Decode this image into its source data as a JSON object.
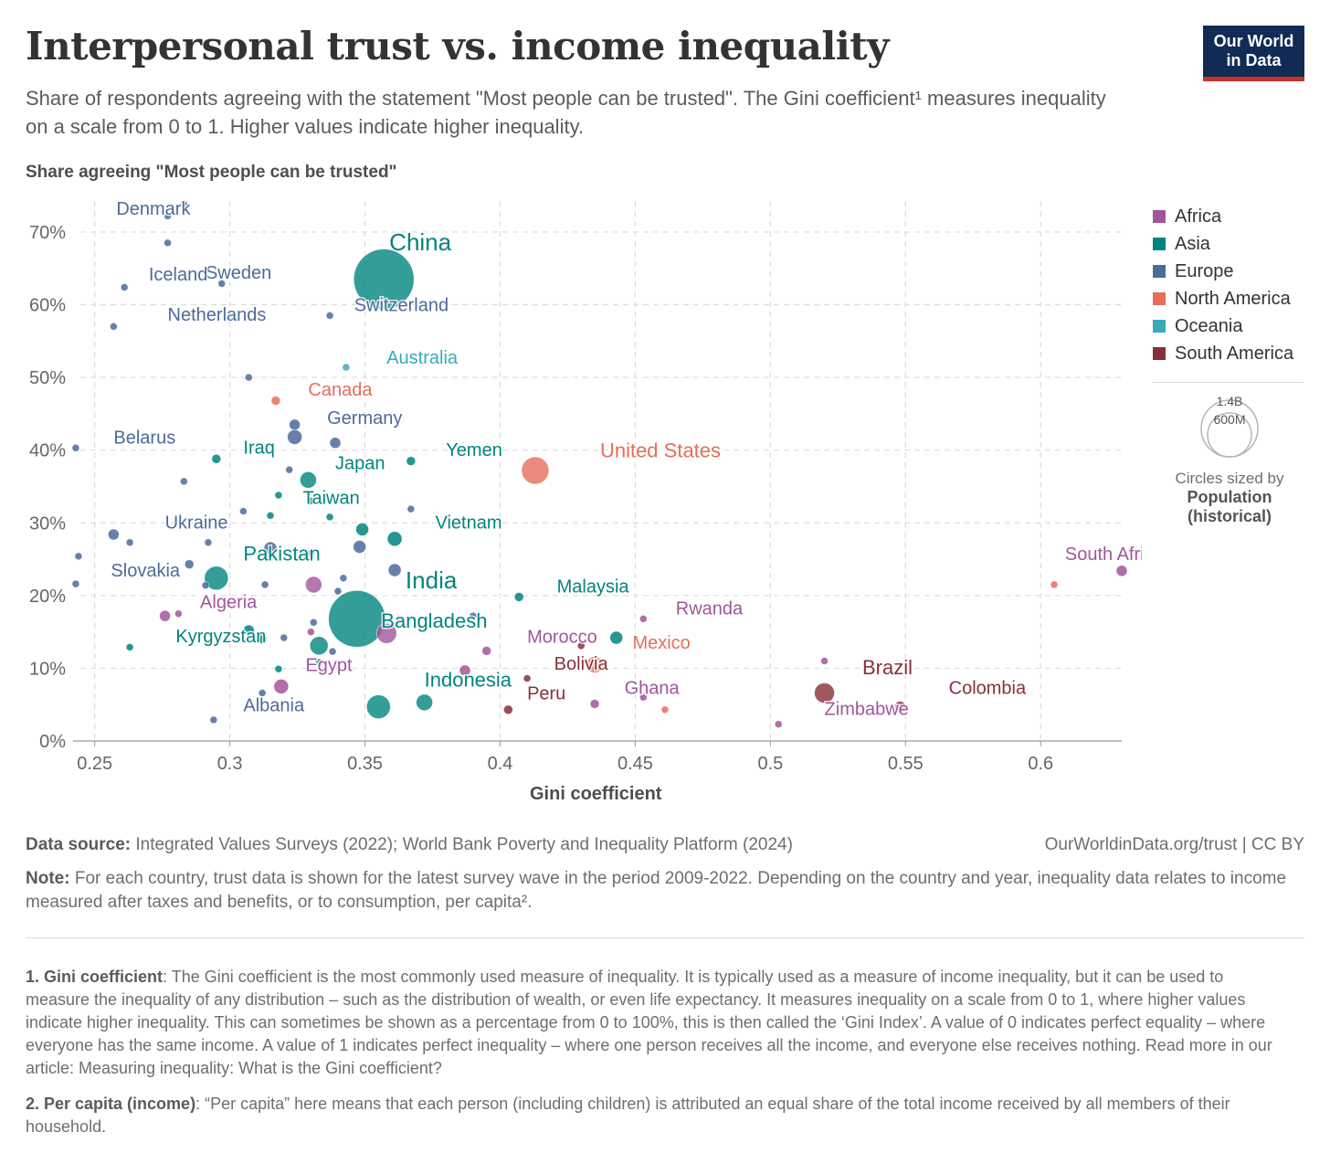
{
  "header": {
    "title": "Interpersonal trust vs. income inequality",
    "subtitle": "Share of respondents agreeing with the statement \"Most people can be trusted\". The Gini coefficient¹ measures inequality on a scale from 0 to 1. Higher values indicate higher inequality.",
    "logo_line1": "Our World",
    "logo_line2": "in Data"
  },
  "chart_data": {
    "type": "scatter",
    "title": "Interpersonal trust vs. income inequality",
    "ylabel": "Share agreeing \"Most people can be trusted\"",
    "xlabel": "Gini coefficient",
    "xlim": [
      0.242,
      0.63
    ],
    "ylim": [
      0,
      72
    ],
    "xticks": [
      0.25,
      0.3,
      0.35,
      0.4,
      0.45,
      0.5,
      0.55,
      0.6
    ],
    "xtick_labels": [
      "0.25",
      "0.3",
      "0.35",
      "0.4",
      "0.45",
      "0.5",
      "0.55",
      "0.6"
    ],
    "yticks": [
      0,
      10,
      20,
      30,
      40,
      50,
      60,
      70
    ],
    "ytick_labels": [
      "0%",
      "10%",
      "20%",
      "30%",
      "40%",
      "50%",
      "60%",
      "70%"
    ],
    "colors": {
      "Africa": "#a2559c",
      "Asia": "#00847e",
      "Europe": "#4c6a9c",
      "North America": "#e56e5a",
      "Oceania": "#38aaba",
      "South America": "#883039"
    },
    "points": [
      {
        "x": 0.283,
        "y": 73.8,
        "r": 4,
        "region": "Europe"
      },
      {
        "x": 0.277,
        "y": 72.2,
        "r": 4,
        "region": "Europe",
        "label": "Denmark"
      },
      {
        "x": 0.277,
        "y": 68.5,
        "r": 4,
        "region": "Europe"
      },
      {
        "x": 0.357,
        "y": 63.5,
        "r": 33,
        "region": "Asia",
        "label": "China",
        "big": true
      },
      {
        "x": 0.297,
        "y": 62.9,
        "r": 4,
        "region": "Europe",
        "label": "Sweden"
      },
      {
        "x": 0.261,
        "y": 62.4,
        "r": 4,
        "region": "Europe",
        "label": "Iceland"
      },
      {
        "x": 0.337,
        "y": 58.5,
        "r": 4,
        "region": "Europe",
        "label": "Switzerland"
      },
      {
        "x": 0.257,
        "y": 57.0,
        "r": 4,
        "region": "Europe",
        "label": "Netherlands"
      },
      {
        "x": 0.343,
        "y": 51.4,
        "r": 4,
        "region": "Oceania",
        "label": "Australia"
      },
      {
        "x": 0.307,
        "y": 50.0,
        "r": 4,
        "region": "Europe"
      },
      {
        "x": 0.317,
        "y": 46.8,
        "r": 5,
        "region": "North America",
        "label": "Canada"
      },
      {
        "x": 0.324,
        "y": 43.5,
        "r": 6,
        "region": "Europe",
        "label": "Germany"
      },
      {
        "x": 0.243,
        "y": 40.3,
        "r": 4,
        "region": "Europe",
        "label": "Belarus"
      },
      {
        "x": 0.324,
        "y": 41.8,
        "r": 8,
        "region": "Europe"
      },
      {
        "x": 0.339,
        "y": 41.0,
        "r": 6,
        "region": "Europe"
      },
      {
        "x": 0.295,
        "y": 38.8,
        "r": 5,
        "region": "Asia",
        "label": "Iraq"
      },
      {
        "x": 0.367,
        "y": 38.5,
        "r": 5,
        "region": "Asia",
        "label": "Yemen"
      },
      {
        "x": 0.413,
        "y": 37.2,
        "r": 15,
        "region": "North America",
        "label": "United States",
        "big": true
      },
      {
        "x": 0.322,
        "y": 37.3,
        "r": 4,
        "region": "Europe"
      },
      {
        "x": 0.329,
        "y": 35.9,
        "r": 9,
        "region": "Asia",
        "label": "Japan"
      },
      {
        "x": 0.283,
        "y": 35.7,
        "r": 4,
        "region": "Europe"
      },
      {
        "x": 0.318,
        "y": 33.8,
        "r": 4,
        "region": "Asia"
      },
      {
        "x": 0.33,
        "y": 33.0,
        "r": 4,
        "region": "Asia",
        "label": "Taiwan"
      },
      {
        "x": 0.367,
        "y": 31.9,
        "r": 4,
        "region": "Europe"
      },
      {
        "x": 0.305,
        "y": 31.6,
        "r": 4,
        "region": "Europe"
      },
      {
        "x": 0.315,
        "y": 31.0,
        "r": 4,
        "region": "Asia"
      },
      {
        "x": 0.337,
        "y": 30.8,
        "r": 4,
        "region": "Asia"
      },
      {
        "x": 0.349,
        "y": 29.1,
        "r": 7,
        "region": "Asia"
      },
      {
        "x": 0.361,
        "y": 27.8,
        "r": 8,
        "region": "Asia",
        "label": "Vietnam"
      },
      {
        "x": 0.257,
        "y": 28.4,
        "r": 6,
        "region": "Europe",
        "label": "Ukraine"
      },
      {
        "x": 0.263,
        "y": 27.3,
        "r": 4,
        "region": "Europe"
      },
      {
        "x": 0.292,
        "y": 27.3,
        "r": 4,
        "region": "Europe"
      },
      {
        "x": 0.348,
        "y": 26.7,
        "r": 7,
        "region": "Europe"
      },
      {
        "x": 0.315,
        "y": 26.5,
        "r": 7,
        "region": "Europe"
      },
      {
        "x": 0.33,
        "y": 25.8,
        "r": 4,
        "region": "Europe"
      },
      {
        "x": 0.244,
        "y": 25.4,
        "r": 4,
        "region": "Europe"
      },
      {
        "x": 0.285,
        "y": 24.3,
        "r": 5,
        "region": "Europe"
      },
      {
        "x": 0.295,
        "y": 22.4,
        "r": 13,
        "region": "Asia",
        "label": "Pakistan"
      },
      {
        "x": 0.361,
        "y": 23.5,
        "r": 7,
        "region": "Europe"
      },
      {
        "x": 0.342,
        "y": 22.4,
        "r": 4,
        "region": "Europe"
      },
      {
        "x": 0.291,
        "y": 21.4,
        "r": 4,
        "region": "Europe"
      },
      {
        "x": 0.243,
        "y": 21.6,
        "r": 4,
        "region": "Europe",
        "label": "Slovakia"
      },
      {
        "x": 0.313,
        "y": 21.5,
        "r": 4,
        "region": "Europe"
      },
      {
        "x": 0.331,
        "y": 21.5,
        "r": 9,
        "region": "Africa"
      },
      {
        "x": 0.34,
        "y": 20.6,
        "r": 4,
        "region": "Europe"
      },
      {
        "x": 0.347,
        "y": 16.8,
        "r": 31,
        "region": "Asia",
        "label": "India",
        "big": true
      },
      {
        "x": 0.407,
        "y": 19.8,
        "r": 5,
        "region": "Asia",
        "label": "Malaysia"
      },
      {
        "x": 0.281,
        "y": 17.5,
        "r": 4,
        "region": "Africa"
      },
      {
        "x": 0.276,
        "y": 17.2,
        "r": 6,
        "region": "Africa",
        "label": "Algeria"
      },
      {
        "x": 0.39,
        "y": 17.2,
        "r": 4,
        "region": "Europe"
      },
      {
        "x": 0.453,
        "y": 16.8,
        "r": 4,
        "region": "Africa",
        "label": "Rwanda"
      },
      {
        "x": 0.358,
        "y": 14.8,
        "r": 11,
        "region": "Africa"
      },
      {
        "x": 0.307,
        "y": 15.2,
        "r": 6,
        "region": "Asia"
      },
      {
        "x": 0.331,
        "y": 16.3,
        "r": 4,
        "region": "Europe"
      },
      {
        "x": 0.312,
        "y": 14.0,
        "r": 5,
        "region": "Asia"
      },
      {
        "x": 0.33,
        "y": 15.0,
        "r": 4,
        "region": "Africa"
      },
      {
        "x": 0.32,
        "y": 14.2,
        "r": 4,
        "region": "Europe"
      },
      {
        "x": 0.443,
        "y": 14.2,
        "r": 7,
        "region": "Asia"
      },
      {
        "x": 0.333,
        "y": 13.1,
        "r": 10,
        "region": "Asia",
        "label": "Bangladesh"
      },
      {
        "x": 0.263,
        "y": 12.9,
        "r": 4,
        "region": "Asia",
        "label": "Kyrgyzstan"
      },
      {
        "x": 0.43,
        "y": 13.1,
        "r": 4,
        "region": "South America"
      },
      {
        "x": 0.395,
        "y": 12.4,
        "r": 5,
        "region": "Africa",
        "label": "Morocco"
      },
      {
        "x": 0.338,
        "y": 12.3,
        "r": 4,
        "region": "Europe"
      },
      {
        "x": 0.333,
        "y": 10.8,
        "r": 4,
        "region": "Asia"
      },
      {
        "x": 0.435,
        "y": 10.5,
        "r": 9,
        "region": "North America",
        "label": "Mexico"
      },
      {
        "x": 0.52,
        "y": 11.0,
        "r": 4,
        "region": "Africa"
      },
      {
        "x": 0.318,
        "y": 9.9,
        "r": 4,
        "region": "Asia"
      },
      {
        "x": 0.387,
        "y": 9.7,
        "r": 6,
        "region": "Africa"
      },
      {
        "x": 0.41,
        "y": 8.6,
        "r": 4,
        "region": "South America",
        "label": "Bolivia"
      },
      {
        "x": 0.319,
        "y": 7.5,
        "r": 8,
        "region": "Africa",
        "label": "Egypt"
      },
      {
        "x": 0.312,
        "y": 6.6,
        "r": 4,
        "region": "Europe"
      },
      {
        "x": 0.52,
        "y": 6.6,
        "r": 11,
        "region": "South America",
        "label": "Brazil"
      },
      {
        "x": 0.453,
        "y": 6.0,
        "r": 4,
        "region": "Africa"
      },
      {
        "x": 0.355,
        "y": 4.7,
        "r": 13,
        "region": "Asia",
        "label": "Indonesia"
      },
      {
        "x": 0.372,
        "y": 5.3,
        "r": 9,
        "region": "Asia"
      },
      {
        "x": 0.435,
        "y": 5.1,
        "r": 5,
        "region": "Africa",
        "label": "Ghana"
      },
      {
        "x": 0.548,
        "y": 4.7,
        "r": 6,
        "region": "South America",
        "label": "Colombia"
      },
      {
        "x": 0.461,
        "y": 4.3,
        "r": 4,
        "region": "North America"
      },
      {
        "x": 0.403,
        "y": 4.3,
        "r": 5,
        "region": "South America",
        "label": "Peru"
      },
      {
        "x": 0.294,
        "y": 2.9,
        "r": 4,
        "region": "Europe",
        "label": "Albania"
      },
      {
        "x": 0.503,
        "y": 2.3,
        "r": 4,
        "region": "Africa",
        "label": "Zimbabwe"
      },
      {
        "x": 0.63,
        "y": 23.4,
        "r": 6,
        "region": "Africa",
        "label": "South Africa"
      },
      {
        "x": 0.605,
        "y": 21.5,
        "r": 4,
        "region": "North America"
      }
    ],
    "labels": [
      {
        "text": "Denmark",
        "x": 0.258,
        "y": 72.4,
        "region": "Europe"
      },
      {
        "text": "China",
        "x": 0.359,
        "y": 67.5,
        "region": "Asia",
        "big": true
      },
      {
        "text": "Sweden",
        "x": 0.291,
        "y": 63.6,
        "region": "Europe"
      },
      {
        "text": "Iceland",
        "x": 0.27,
        "y": 63.3,
        "region": "Europe"
      },
      {
        "text": "Switzerland",
        "x": 0.346,
        "y": 59.1,
        "region": "Europe"
      },
      {
        "text": "Netherlands",
        "x": 0.277,
        "y": 57.8,
        "region": "Europe"
      },
      {
        "text": "Australia",
        "x": 0.358,
        "y": 51.9,
        "region": "Oceania"
      },
      {
        "text": "Canada",
        "x": 0.329,
        "y": 47.5,
        "region": "North America"
      },
      {
        "text": "Germany",
        "x": 0.336,
        "y": 43.6,
        "region": "Europe"
      },
      {
        "text": "Belarus",
        "x": 0.257,
        "y": 40.9,
        "region": "Europe"
      },
      {
        "text": "Iraq",
        "x": 0.305,
        "y": 39.5,
        "region": "Asia"
      },
      {
        "text": "Yemen",
        "x": 0.38,
        "y": 39.2,
        "region": "Asia"
      },
      {
        "text": "United States",
        "x": 0.437,
        "y": 39.0,
        "region": "North America",
        "big": true
      },
      {
        "text": "Japan",
        "x": 0.339,
        "y": 37.4,
        "region": "Asia"
      },
      {
        "text": "Taiwan",
        "x": 0.327,
        "y": 32.6,
        "region": "Asia"
      },
      {
        "text": "Vietnam",
        "x": 0.376,
        "y": 29.2,
        "region": "Asia"
      },
      {
        "text": "Ukraine",
        "x": 0.276,
        "y": 29.2,
        "region": "Europe"
      },
      {
        "text": "Pakistan",
        "x": 0.305,
        "y": 24.8,
        "region": "Asia",
        "big": true
      },
      {
        "text": "Slovakia",
        "x": 0.256,
        "y": 22.6,
        "region": "Europe"
      },
      {
        "text": "India",
        "x": 0.365,
        "y": 21.0,
        "region": "Asia",
        "big": true
      },
      {
        "text": "Malaysia",
        "x": 0.421,
        "y": 20.4,
        "region": "Asia"
      },
      {
        "text": "Algeria",
        "x": 0.289,
        "y": 18.3,
        "region": "Africa"
      },
      {
        "text": "Rwanda",
        "x": 0.465,
        "y": 17.4,
        "region": "Africa"
      },
      {
        "text": "Bangladesh",
        "x": 0.356,
        "y": 15.6,
        "region": "Asia",
        "big": true
      },
      {
        "text": "Kyrgyzstan",
        "x": 0.28,
        "y": 13.6,
        "region": "Asia"
      },
      {
        "text": "Morocco",
        "x": 0.41,
        "y": 13.5,
        "region": "Africa"
      },
      {
        "text": "Mexico",
        "x": 0.449,
        "y": 12.7,
        "region": "North America"
      },
      {
        "text": "Bolivia",
        "x": 0.42,
        "y": 9.8,
        "region": "South America"
      },
      {
        "text": "Egypt",
        "x": 0.328,
        "y": 9.6,
        "region": "Africa"
      },
      {
        "text": "Brazil",
        "x": 0.534,
        "y": 9.2,
        "region": "South America",
        "big": true
      },
      {
        "text": "Indonesia",
        "x": 0.372,
        "y": 7.5,
        "region": "Asia",
        "big": true
      },
      {
        "text": "Ghana",
        "x": 0.446,
        "y": 6.5,
        "region": "Africa"
      },
      {
        "text": "Colombia",
        "x": 0.566,
        "y": 6.5,
        "region": "South America"
      },
      {
        "text": "Peru",
        "x": 0.41,
        "y": 5.7,
        "region": "South America"
      },
      {
        "text": "Albania",
        "x": 0.305,
        "y": 4.1,
        "region": "Europe"
      },
      {
        "text": "Zimbabwe",
        "x": 0.52,
        "y": 3.6,
        "region": "Africa"
      },
      {
        "text": "South Africa",
        "x": 0.609,
        "y": 24.9,
        "region": "Africa"
      }
    ],
    "legend": [
      "Africa",
      "Asia",
      "Europe",
      "North America",
      "Oceania",
      "South America"
    ],
    "size_legend": {
      "large": "1.4B",
      "small": "600M",
      "note": "Circles sized by",
      "variable": "Population",
      "variable2": "(historical)"
    }
  },
  "footer": {
    "source_label": "Data source:",
    "source_text": " Integrated Values Surveys (2022); World Bank Poverty and Inequality Platform (2024)",
    "credit": "OurWorldinData.org/trust | CC BY",
    "note_label": "Note:",
    "note_text": " For each country, trust data is shown for the latest survey wave in the period 2009-2022. Depending on the country and year, inequality data relates to income measured after taxes and benefits, or to consumption, per capita².",
    "fn1_label": "1. Gini coefficient",
    "fn1_text": ": The Gini coefficient is the most commonly used measure of inequality. It is typically used as a measure of income inequality, but it can be used to measure the inequality of any distribution – such as the distribution of wealth, or even life expectancy. It measures inequality on a scale from 0 to 1, where higher values indicate higher inequality. This can sometimes be shown as a percentage from 0 to 100%, this is then called the ‘Gini Index’. A value of 0 indicates perfect equality – where everyone has the same income. A value of 1 indicates perfect inequality – where one person receives all the income, and everyone else receives nothing. Read more in our article: Measuring inequality: What is the Gini coefficient?",
    "fn2_label": "2. Per capita (income)",
    "fn2_text": ": “Per capita” here means that each person (including children) is attributed an equal share of the total income received by all members of their household."
  }
}
